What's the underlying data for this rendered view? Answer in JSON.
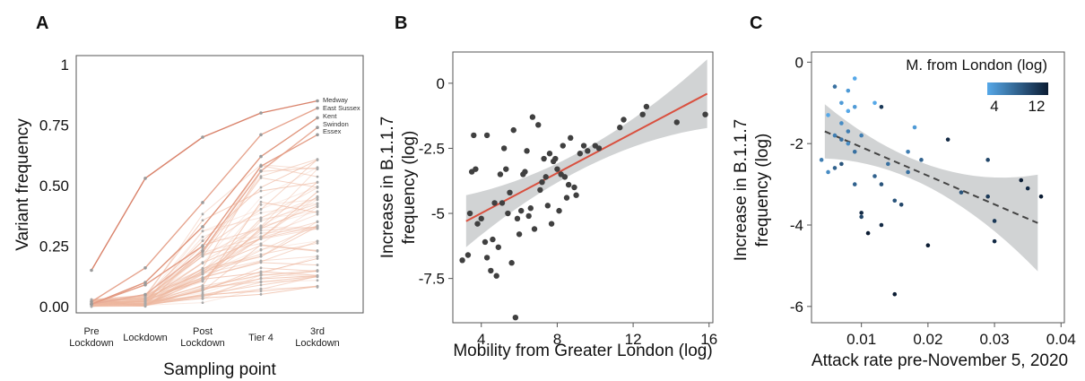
{
  "chart_data": [
    {
      "panel": "A",
      "type": "line",
      "xlabel": "Sampling point",
      "ylabel": "Variant frequency",
      "categories": [
        "Pre\nLockdown",
        "Lockdown",
        "Post\nLockdown",
        "Tier 4",
        "3rd\nLockdown"
      ],
      "yticks": [
        "0.00",
        "0.25",
        "0.50",
        "0.75",
        "1"
      ],
      "ylim": [
        0,
        1
      ],
      "highlighted_series": [
        {
          "name": "Medway",
          "values": [
            0.15,
            0.53,
            0.7,
            0.8,
            0.85
          ]
        },
        {
          "name": "East Sussex",
          "values": [
            0.02,
            0.16,
            0.43,
            0.71,
            0.82
          ]
        },
        {
          "name": "Kent",
          "values": [
            0.01,
            0.1,
            0.33,
            0.62,
            0.78
          ]
        },
        {
          "name": "Swindon",
          "values": [
            0.01,
            0.05,
            0.23,
            0.56,
            0.74
          ]
        },
        {
          "name": "Essex",
          "values": [
            0.01,
            0.09,
            0.25,
            0.58,
            0.71
          ]
        }
      ],
      "other_series_count": 60
    },
    {
      "panel": "B",
      "type": "scatter",
      "xlabel": "Mobility from Greater London (log)",
      "ylabel": "Increase in B.1.1.7\nfrequency (log)",
      "xticks": [
        "4",
        "8",
        "12",
        "16"
      ],
      "yticks": [
        "0",
        "-2.5",
        "-5",
        "-7.5"
      ],
      "xlim": [
        2.5,
        16.2
      ],
      "ylim": [
        -9.2,
        1.2
      ],
      "points": [
        [
          3.0,
          -6.8
        ],
        [
          3.3,
          -6.6
        ],
        [
          3.4,
          -5.0
        ],
        [
          3.5,
          -3.4
        ],
        [
          3.6,
          -2.0
        ],
        [
          3.7,
          -3.3
        ],
        [
          3.8,
          -5.4
        ],
        [
          4.0,
          -5.2
        ],
        [
          4.2,
          -6.1
        ],
        [
          4.3,
          -2.0
        ],
        [
          4.3,
          -6.7
        ],
        [
          4.5,
          -7.2
        ],
        [
          4.6,
          -6.0
        ],
        [
          4.7,
          -4.6
        ],
        [
          4.8,
          -7.4
        ],
        [
          4.9,
          -6.3
        ],
        [
          5.0,
          -3.5
        ],
        [
          5.1,
          -4.6
        ],
        [
          5.2,
          -2.5
        ],
        [
          5.3,
          -3.3
        ],
        [
          5.4,
          -5.0
        ],
        [
          5.5,
          -4.2
        ],
        [
          5.6,
          -6.9
        ],
        [
          5.7,
          -1.8
        ],
        [
          5.8,
          -9.0
        ],
        [
          5.9,
          -5.2
        ],
        [
          6.0,
          -5.8
        ],
        [
          6.1,
          -4.9
        ],
        [
          6.2,
          -3.5
        ],
        [
          6.3,
          -3.4
        ],
        [
          6.4,
          -2.6
        ],
        [
          6.5,
          -5.1
        ],
        [
          6.6,
          -4.8
        ],
        [
          6.7,
          -1.3
        ],
        [
          6.8,
          -5.6
        ],
        [
          7.0,
          -1.6
        ],
        [
          7.1,
          -4.1
        ],
        [
          7.2,
          -3.8
        ],
        [
          7.3,
          -2.9
        ],
        [
          7.4,
          -3.6
        ],
        [
          7.5,
          -4.7
        ],
        [
          7.6,
          -2.7
        ],
        [
          7.7,
          -5.4
        ],
        [
          7.8,
          -3.0
        ],
        [
          7.9,
          -2.9
        ],
        [
          8.0,
          -3.3
        ],
        [
          8.1,
          -4.9
        ],
        [
          8.2,
          -3.5
        ],
        [
          8.3,
          -2.4
        ],
        [
          8.4,
          -3.6
        ],
        [
          8.5,
          -4.4
        ],
        [
          8.6,
          -3.9
        ],
        [
          8.7,
          -2.1
        ],
        [
          8.9,
          -4.0
        ],
        [
          9.0,
          -4.3
        ],
        [
          9.2,
          -2.7
        ],
        [
          9.4,
          -2.4
        ],
        [
          9.6,
          -2.6
        ],
        [
          10.0,
          -2.4
        ],
        [
          10.2,
          -2.5
        ],
        [
          11.3,
          -1.7
        ],
        [
          11.5,
          -1.4
        ],
        [
          12.5,
          -1.2
        ],
        [
          12.7,
          -0.9
        ],
        [
          14.3,
          -1.5
        ],
        [
          15.8,
          -1.2
        ]
      ],
      "fit": {
        "x": [
          3.2,
          15.9
        ],
        "y": [
          -5.3,
          -0.4
        ]
      }
    },
    {
      "panel": "C",
      "type": "scatter",
      "xlabel": "Attack rate pre-November 5, 2020",
      "ylabel": "Increase in B.1.1.7\nfrequency (log)",
      "xticks": [
        "0.01",
        "0.02",
        "0.03",
        "0.04"
      ],
      "yticks": [
        "0",
        "-2",
        "-4",
        "-6"
      ],
      "xlim": [
        0.0025,
        0.0405
      ],
      "ylim": [
        -6.4,
        0.25
      ],
      "legend": {
        "title": "M. from London (log)",
        "ticks": [
          "4",
          "12"
        ],
        "colors": [
          "#56a8e8",
          "#0b1c33"
        ]
      },
      "points": [
        [
          0.004,
          -2.4,
          6
        ],
        [
          0.005,
          -2.7,
          5
        ],
        [
          0.005,
          -1.3,
          3
        ],
        [
          0.006,
          -0.6,
          7
        ],
        [
          0.006,
          -1.8,
          6
        ],
        [
          0.006,
          -2.6,
          8
        ],
        [
          0.007,
          -1.0,
          4
        ],
        [
          0.007,
          -1.5,
          5
        ],
        [
          0.007,
          -1.9,
          7
        ],
        [
          0.007,
          -2.5,
          9
        ],
        [
          0.008,
          -0.7,
          4
        ],
        [
          0.008,
          -1.2,
          3
        ],
        [
          0.008,
          -1.7,
          6
        ],
        [
          0.008,
          -2.0,
          5
        ],
        [
          0.009,
          -0.4,
          3
        ],
        [
          0.009,
          -1.1,
          4
        ],
        [
          0.009,
          -3.0,
          8
        ],
        [
          0.009,
          -2.2,
          7
        ],
        [
          0.01,
          -1.8,
          6
        ],
        [
          0.01,
          -3.7,
          12
        ],
        [
          0.01,
          -3.8,
          10
        ],
        [
          0.011,
          -4.2,
          13
        ],
        [
          0.012,
          -1.0,
          3
        ],
        [
          0.012,
          -2.8,
          8
        ],
        [
          0.013,
          -1.1,
          11
        ],
        [
          0.013,
          -3.0,
          9
        ],
        [
          0.013,
          -4.0,
          12
        ],
        [
          0.014,
          -2.5,
          7
        ],
        [
          0.015,
          -5.7,
          13
        ],
        [
          0.015,
          -3.4,
          9
        ],
        [
          0.016,
          -3.5,
          10
        ],
        [
          0.017,
          -2.2,
          6
        ],
        [
          0.017,
          -2.7,
          7
        ],
        [
          0.018,
          -1.6,
          4
        ],
        [
          0.019,
          -2.4,
          8
        ],
        [
          0.02,
          -4.5,
          13
        ],
        [
          0.023,
          -1.9,
          12
        ],
        [
          0.025,
          -3.2,
          9
        ],
        [
          0.029,
          -2.4,
          10
        ],
        [
          0.03,
          -3.9,
          11
        ],
        [
          0.03,
          -4.4,
          12
        ],
        [
          0.034,
          -2.9,
          13
        ],
        [
          0.035,
          -3.1,
          12
        ],
        [
          0.037,
          -3.3,
          13
        ],
        [
          0.029,
          -3.3,
          11
        ]
      ],
      "fit": {
        "x": [
          0.0045,
          0.0365
        ],
        "y": [
          -1.7,
          -3.95
        ]
      }
    }
  ],
  "panel_labels": [
    "A",
    "B",
    "C"
  ]
}
